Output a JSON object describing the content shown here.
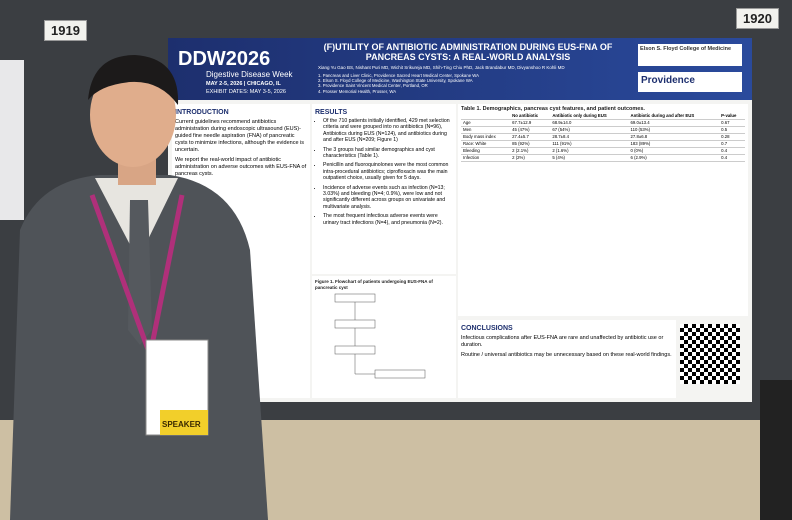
{
  "board_numbers": [
    "1919",
    "1920"
  ],
  "poster": {
    "logo": "DDW2026",
    "logo_subtitle": "Digestive Disease Week",
    "dates": "MAY 2-5, 2026 | CHICAGO, IL",
    "exhibit_dates": "EXHIBIT DATES: MAY 3-5, 2026",
    "title": "(F)UTILITY OF ANTIBIOTIC ADMINISTRATION DURING EUS-FNA OF PANCREAS CYSTS: A REAL-WORLD ANALYSIS",
    "authors": "Xiang Yu Gao BS, Nishant Puri MD, Wichit Srikureja MD, Shih-Ting Chiu PhD, Jack Brandabur MD, Divyanshoo R Kohli MD",
    "affiliations": [
      "1. Pancreas and Liver Clinic, Providence Sacred Heart Medical Center, Spokane WA",
      "2. Elson S. Floyd College of Medicine, Washington State University, Spokane WA",
      "3. Providence Saint Vincent Medical Center, Portland, OR",
      "4. Prosser Memorial Health, Prosser, WA"
    ],
    "partner_logos": [
      "Elson S. Floyd College of Medicine",
      "Providence"
    ],
    "introduction": {
      "heading": "INTRODUCTION",
      "paragraphs": [
        "Current guidelines recommend antibiotics administration during endoscopic ultrasound (EUS)-guided fine needle aspiration (FNA) of pancreatic cysts to minimize infections, although the evidence is uncertain.",
        "We report the real-world impact of antibiotic administration on adverse outcomes with EUS-FNA of pancreas cysts."
      ]
    },
    "results": {
      "heading": "RESULTS",
      "bullets": [
        "Of the 710 patients initially identified, 429 met selection criteria and were grouped into no antibiotics (N=96), Antibiotics during EUS (N=124), and antibiotics during and after EUS (N=209; Figure 1)",
        "The 3 groups had similar demographics and cyst characteristics (Table 1).",
        "Penicillin and fluoroquinolones were the most common intra-procedural antibiotics; ciprofloxacin was the main outpatient choice, usually given for 5 days.",
        "Incidence of adverse events such as infection (N=13; 3.03%) and bleeding (N=4; 0.9%), were low and not significantly different across groups on univariate and multivariate analysis.",
        "The most frequent infectious adverse events were urinary tract infections (N=4), and pneumonia (N=2)."
      ]
    },
    "figure_title": "Figure 1. Flowchart of patients undergoing EUS-FNA of pancreatic cyst",
    "table": {
      "title": "Table 1. Demographics, pancreas cyst features, and patient outcomes.",
      "header": [
        "",
        "No antibiotic",
        "Antibiotic only during EUS",
        "Antibiotic during and after EUS",
        "P-value"
      ],
      "rows": [
        [
          "Age",
          "67.7±12.9",
          "68.9±14.0",
          "69.0±13.4",
          "0.67"
        ],
        [
          "Men",
          "45 (47%)",
          "67 (54%)",
          "110 (53%)",
          "0.5"
        ],
        [
          "Body mass index",
          "27.4±5.7",
          "28.7±8.4",
          "27.8±6.8",
          "0.28"
        ],
        [
          "Race: White",
          "85 (92%)",
          "111 (91%)",
          "183 (89%)",
          "0.7"
        ],
        [
          "Bleeding",
          "2 (2.1%)",
          "2 (1.6%)",
          "0 (0%)",
          "0.4"
        ],
        [
          "Infection",
          "2 (2%)",
          "5 (4%)",
          "6 (2.9%)",
          "0.4"
        ]
      ]
    },
    "conclusions": {
      "heading": "CONCLUSIONS",
      "paragraphs": [
        "Infectious complications after EUS-FNA are rare and unaffected by antibiotic use or duration.",
        "Routine / universal antibiotics may be unnecessary based on these real-world findings."
      ]
    }
  },
  "badge": "SPEAKER"
}
